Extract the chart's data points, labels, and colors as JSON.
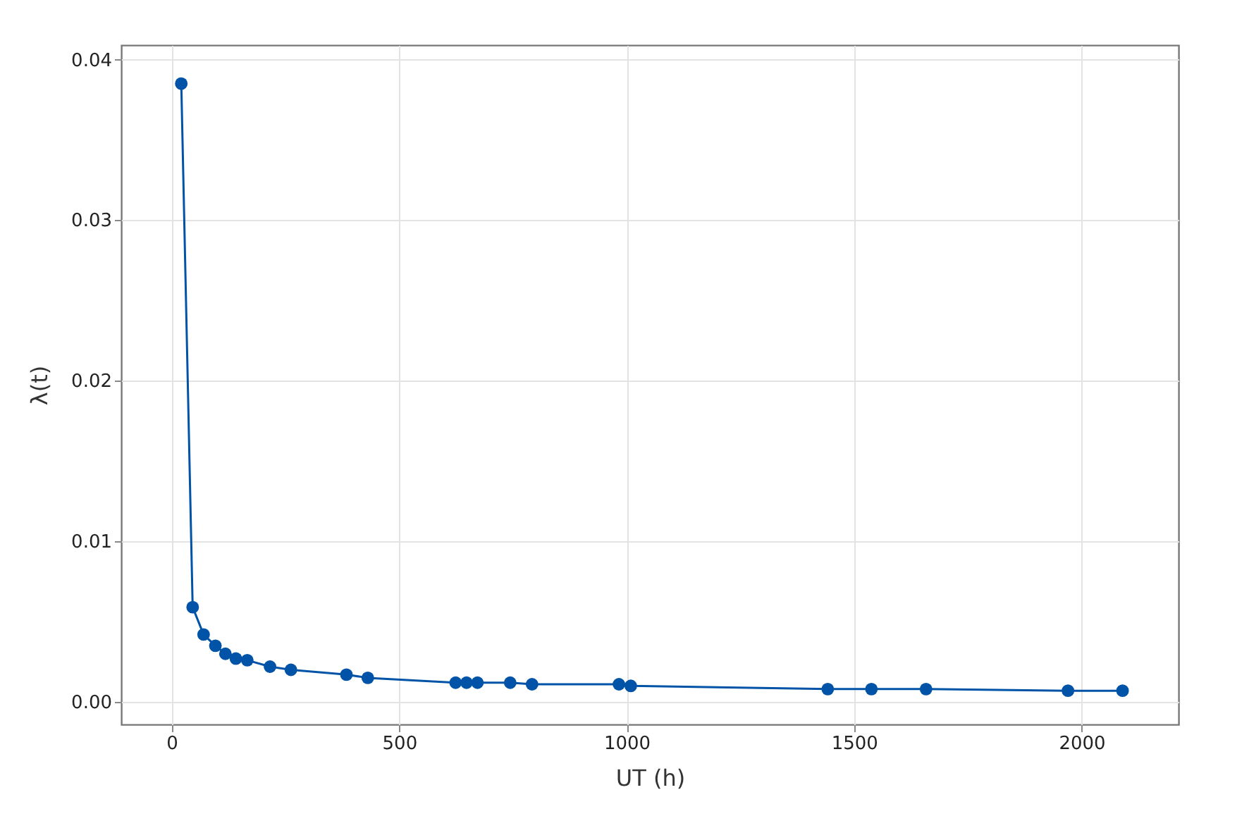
{
  "chart_data": {
    "type": "line",
    "xlabel": "UT (h)",
    "ylabel": "λ(t)",
    "x": [
      21,
      46,
      70,
      96,
      118,
      141,
      166,
      216,
      262,
      384,
      431,
      624,
      648,
      672,
      744,
      792,
      983,
      1009,
      1442,
      1538,
      1658,
      1970,
      2090
    ],
    "series": [
      {
        "color": "#0053a6",
        "values": [
          0.0385,
          0.0059,
          0.0042,
          0.0035,
          0.003,
          0.0027,
          0.0026,
          0.0022,
          0.002,
          0.0017,
          0.0015,
          0.0012,
          0.0012,
          0.0012,
          0.0012,
          0.0011,
          0.0011,
          0.001,
          0.0008,
          0.0008,
          0.0008,
          0.0007,
          0.0007
        ]
      }
    ],
    "xlim": [
      -111,
      2213
    ],
    "xticks": [
      0,
      500,
      1000,
      1500,
      2000
    ],
    "ylim": [
      -0.0014,
      0.0409
    ],
    "yticks": [
      {
        "value": 0,
        "label": "0.00"
      },
      0.01,
      0.02,
      0.03,
      0.04
    ],
    "grid": true,
    "marker": "circle",
    "line_style": "solid"
  }
}
